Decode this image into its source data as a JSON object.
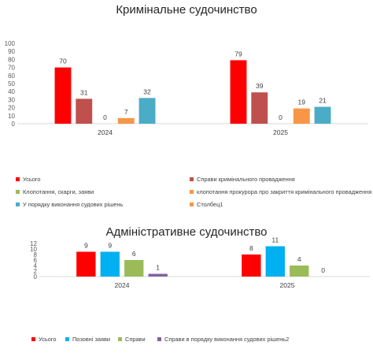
{
  "chart_data": [
    {
      "type": "bar",
      "title": "Кримінальне судочинство",
      "ylabel": "",
      "ylim": [
        0,
        100
      ],
      "yticks": [
        0,
        10,
        20,
        30,
        40,
        50,
        60,
        70,
        80,
        90,
        100
      ],
      "categories": [
        "2024",
        "2025"
      ],
      "series": [
        {
          "name": "Усього",
          "color": "#ff0000",
          "values": [
            70,
            79
          ]
        },
        {
          "name": "Справи кримінального провадження",
          "color": "#c0504d",
          "values": [
            31,
            39
          ]
        },
        {
          "name": "Клопотання, скарги, заяви",
          "color": "#9bbb59",
          "values": [
            0,
            0
          ]
        },
        {
          "name": "клопотання прокурора про закриття кримінального провадження",
          "color": "#f79646",
          "values": [
            7,
            19
          ]
        },
        {
          "name": "У порядку виконання судових рішень",
          "color": "#4bacc6",
          "values": [
            32,
            21
          ]
        },
        {
          "name": "Столбец1",
          "color": "#f79646",
          "values": [
            null,
            null
          ]
        }
      ],
      "legend": "bottom",
      "grid": false
    },
    {
      "type": "bar",
      "title": "Адміністративне судочинство",
      "ylabel": "",
      "ylim": [
        0,
        12
      ],
      "yticks": [
        0,
        2,
        4,
        6,
        8,
        10,
        12
      ],
      "categories": [
        "2024",
        "2025"
      ],
      "series": [
        {
          "name": "Усього",
          "color": "#ff0000",
          "values": [
            9,
            8
          ]
        },
        {
          "name": "Позовні заяви",
          "color": "#00b0f0",
          "values": [
            9,
            11
          ]
        },
        {
          "name": "Справи",
          "color": "#9bbb59",
          "values": [
            6,
            4
          ]
        },
        {
          "name": "Справи в порядку виконання судових рішень2",
          "color": "#8064a2",
          "values": [
            1,
            0
          ]
        }
      ],
      "legend": "bottom",
      "grid": false
    }
  ]
}
